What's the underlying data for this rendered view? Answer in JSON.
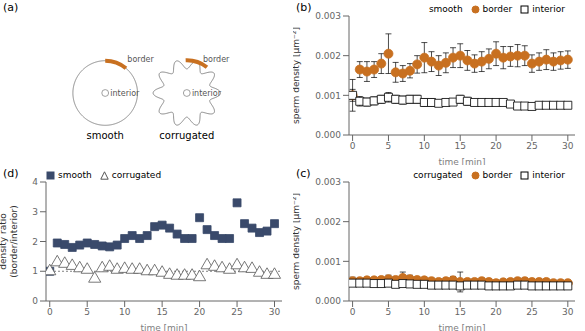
{
  "chart_data": [
    {
      "type": "diagram",
      "title": "(a)",
      "color": "#C87020",
      "series": [
        {
          "name": "smooth",
          "line_style": "smooth",
          "annotations": [
            "interior",
            "border"
          ]
        },
        {
          "name": "corrugated",
          "line_style": "corrugated",
          "annotations": [
            "interior",
            "border"
          ]
        }
      ]
    },
    {
      "type": "scatter",
      "title": "(b)",
      "subtitle": "smooth",
      "x_label": "time [min]",
      "y_label": "sperm density  [μm⁻²]",
      "xlim": [
        -0.5,
        31
      ],
      "xticks": [
        0,
        5,
        10,
        15,
        20,
        25,
        30
      ],
      "ylim": [
        0,
        0.003
      ],
      "yticks": [
        {
          "value": 0,
          "label": "0.000"
        },
        0.001,
        0.002,
        0.003
      ],
      "legend": "upper right",
      "x": [
        0,
        1,
        2,
        3,
        4,
        5,
        6,
        7,
        8,
        9,
        10,
        11,
        12,
        13,
        14,
        15,
        16,
        17,
        18,
        19,
        20,
        21,
        22,
        23,
        24,
        25,
        26,
        27,
        28,
        29,
        30
      ],
      "series": [
        {
          "name": "border",
          "color": "#C87020",
          "marker": "circle",
          "values": [
            0.001,
            0.00165,
            0.0016,
            0.00165,
            0.0018,
            0.00205,
            0.00158,
            0.00155,
            0.00162,
            0.00178,
            0.00195,
            0.00185,
            0.00175,
            0.00182,
            0.00195,
            0.002,
            0.00188,
            0.0018,
            0.00185,
            0.00192,
            0.00205,
            0.00195,
            0.00198,
            0.002,
            0.002,
            0.0018,
            0.00185,
            0.0019,
            0.00185,
            0.00188,
            0.0019
          ],
          "errors": [
            0.0004,
            0.0002,
            0.00025,
            0.0002,
            0.00025,
            0.0005,
            0.00025,
            0.0002,
            0.00018,
            0.00022,
            0.00038,
            0.00025,
            0.00025,
            0.00025,
            0.00025,
            0.0003,
            0.00025,
            0.00022,
            0.00025,
            0.00025,
            0.0003,
            0.00028,
            0.00025,
            0.00028,
            0.00025,
            0.00022,
            0.00022,
            0.00025,
            0.00022,
            0.00022,
            0.00022
          ]
        },
        {
          "name": "interior",
          "color": "#000000",
          "marker": "open_square",
          "values": [
            0.001,
            0.00085,
            0.00083,
            0.00086,
            0.0009,
            0.00095,
            0.0009,
            0.00088,
            0.0009,
            0.0009,
            0.00082,
            0.00082,
            0.0008,
            0.00082,
            0.00083,
            0.0009,
            0.00085,
            0.00082,
            0.00082,
            0.00082,
            0.00082,
            0.00082,
            0.00078,
            0.00073,
            0.00073,
            0.00072,
            0.00075,
            0.00075,
            0.00075,
            0.00075,
            0.00075
          ],
          "errors": [
            0.00015,
            0.00012,
            0.0001,
            0.0001,
            0.0001,
            0.00012,
            0.0001,
            0.0001,
            0.0001,
            0.0001,
            0.0001,
            0.0001,
            8e-05,
            8e-05,
            8e-05,
            0.0001,
            0.0001,
            8e-05,
            8e-05,
            8e-05,
            8e-05,
            8e-05,
            8e-05,
            8e-05,
            8e-05,
            8e-05,
            8e-05,
            8e-05,
            8e-05,
            8e-05,
            8e-05
          ]
        }
      ]
    },
    {
      "type": "scatter",
      "title": "(c)",
      "subtitle": "corrugated",
      "x_label": "time [min]",
      "y_label": "sperm density  [μm⁻²]",
      "xlim": [
        -0.5,
        31
      ],
      "xticks": [
        0,
        5,
        10,
        15,
        20,
        25,
        30
      ],
      "ylim": [
        0,
        0.003
      ],
      "yticks": [
        {
          "value": 0,
          "label": "0.000"
        },
        0.001,
        0.002,
        0.003
      ],
      "legend": "upper right",
      "x": [
        0,
        1,
        2,
        3,
        4,
        5,
        6,
        7,
        8,
        9,
        10,
        11,
        12,
        13,
        14,
        15,
        16,
        17,
        18,
        19,
        20,
        21,
        22,
        23,
        24,
        25,
        26,
        27,
        28,
        29,
        30
      ],
      "series": [
        {
          "name": "border",
          "color": "#C87020",
          "marker": "circle",
          "values": [
            0.0005,
            0.0005,
            0.00052,
            0.00052,
            0.00053,
            0.00055,
            0.00053,
            0.00058,
            0.00055,
            0.00053,
            0.00052,
            0.0005,
            0.00048,
            0.0005,
            0.00052,
            0.00048,
            0.00048,
            0.00048,
            0.0005,
            0.00048,
            0.00045,
            0.00047,
            0.00048,
            0.0005,
            0.0005,
            0.00048,
            0.00048,
            0.00048,
            0.00045,
            0.00045,
            0.00045
          ],
          "errors": [
            0.0001,
            8e-05,
            8e-05,
            8e-05,
            8e-05,
            0.0001,
            8e-05,
            0.00015,
            0.0001,
            8e-05,
            8e-05,
            8e-05,
            8e-05,
            8e-05,
            0.0001,
            0.00025,
            8e-05,
            8e-05,
            8e-05,
            8e-05,
            8e-05,
            8e-05,
            8e-05,
            8e-05,
            8e-05,
            8e-05,
            8e-05,
            8e-05,
            8e-05,
            8e-05,
            8e-05
          ]
        },
        {
          "name": "interior",
          "color": "#000000",
          "marker": "open_square",
          "values": [
            0.00045,
            0.00045,
            0.00045,
            0.00044,
            0.00044,
            0.00045,
            0.00042,
            0.00044,
            0.00043,
            0.00042,
            0.00042,
            0.0004,
            0.0004,
            0.0004,
            0.0004,
            0.00038,
            0.0004,
            0.0004,
            0.0004,
            0.00038,
            0.00038,
            0.00038,
            0.00038,
            0.0004,
            0.0004,
            0.00038,
            0.00038,
            0.00038,
            0.00038,
            0.00038,
            0.00038
          ],
          "errors": [
            8e-05,
            6e-05,
            6e-05,
            6e-05,
            6e-05,
            6e-05,
            6e-05,
            6e-05,
            6e-05,
            6e-05,
            6e-05,
            6e-05,
            6e-05,
            6e-05,
            6e-05,
            6e-05,
            6e-05,
            6e-05,
            6e-05,
            6e-05,
            6e-05,
            6e-05,
            6e-05,
            6e-05,
            6e-05,
            6e-05,
            6e-05,
            6e-05,
            6e-05,
            6e-05,
            6e-05
          ]
        }
      ]
    },
    {
      "type": "scatter",
      "title": "(d)",
      "x_label": "time [min]",
      "y_label": "density ratio\n(border/interior)",
      "xlim": [
        -0.5,
        31
      ],
      "xticks": [
        0,
        5,
        10,
        15,
        20,
        25,
        30
      ],
      "ylim": [
        0,
        4
      ],
      "yticks": [
        0,
        1,
        2,
        3,
        4
      ],
      "legend": "upper left",
      "reference_line": 1,
      "x": [
        0,
        1,
        2,
        3,
        4,
        5,
        6,
        7,
        8,
        9,
        10,
        11,
        12,
        13,
        14,
        15,
        16,
        17,
        18,
        19,
        20,
        21,
        22,
        23,
        24,
        25,
        26,
        27,
        28,
        29,
        30
      ],
      "series": [
        {
          "name": "smooth",
          "color": "#3a4a6b",
          "marker": "square",
          "values": [
            1.0,
            1.95,
            1.9,
            1.8,
            1.88,
            1.95,
            1.9,
            1.85,
            1.82,
            1.88,
            2.1,
            2.2,
            2.1,
            2.2,
            2.5,
            2.55,
            2.45,
            2.25,
            2.1,
            2.1,
            2.8,
            2.4,
            2.2,
            2.1,
            2.1,
            3.3,
            2.6,
            2.45,
            2.3,
            2.35,
            2.6
          ]
        },
        {
          "name": "corrugated",
          "color": "#555555",
          "marker": "open_triangle",
          "values": [
            1.0,
            1.3,
            1.25,
            1.18,
            1.1,
            1.05,
            0.75,
            1.1,
            1.15,
            1.05,
            1.08,
            1.05,
            1.05,
            1.0,
            1.0,
            0.95,
            0.88,
            0.85,
            0.85,
            0.85,
            0.8,
            1.2,
            1.15,
            1.1,
            1.05,
            1.2,
            1.1,
            1.08,
            0.95,
            0.88,
            0.88
          ]
        }
      ]
    }
  ]
}
